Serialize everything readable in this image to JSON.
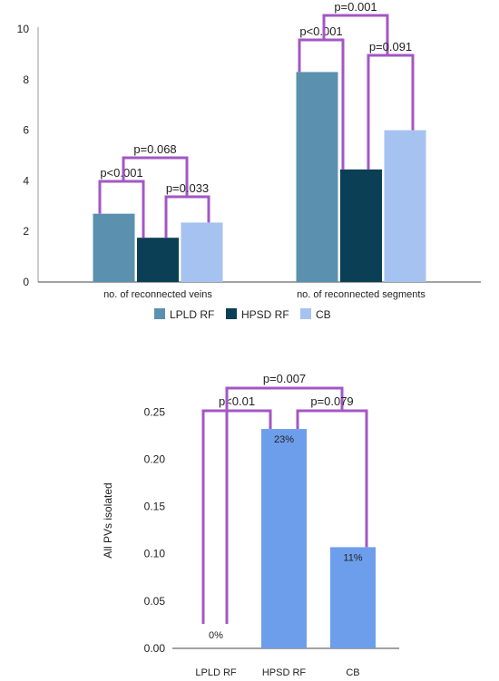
{
  "chart_data": [
    {
      "type": "bar",
      "categories": [
        "no. of reconnected veins",
        "no. of reconnected segments"
      ],
      "series": [
        {
          "name": "LPLD RF",
          "values": [
            2.7,
            8.3
          ],
          "color": "#5b91ae"
        },
        {
          "name": "HPSD RF",
          "values": [
            1.75,
            4.45
          ],
          "color": "#0b3f55"
        },
        {
          "name": "CB",
          "values": [
            2.35,
            6.0
          ],
          "color": "#a6c2f0"
        }
      ],
      "ylim": [
        0,
        10
      ],
      "yticks": [
        0,
        2,
        4,
        6,
        8,
        10
      ],
      "ytick_labels": [
        "0",
        "2",
        "4",
        "6",
        "8",
        "10"
      ],
      "grid": false,
      "legend_position": "bottom",
      "annotations": [
        {
          "text": "p<0.001",
          "category": 0,
          "from": 0,
          "to": 1,
          "level": 1
        },
        {
          "text": "p=0.068",
          "category": 0,
          "from": 0,
          "to": 2,
          "level": 2
        },
        {
          "text": "p=0.033",
          "category": 0,
          "from": 1,
          "to": 2,
          "level": 0
        },
        {
          "text": "p<0.001",
          "category": 1,
          "from": 0,
          "to": 1,
          "level": 1
        },
        {
          "text": "p=0.001",
          "category": 1,
          "from": 0,
          "to": 2,
          "level": 2
        },
        {
          "text": "p=0.091",
          "category": 1,
          "from": 1,
          "to": 2,
          "level": 0
        }
      ],
      "bracket_color": "#a357c4"
    },
    {
      "type": "bar",
      "categories": [
        "LPLD RF",
        "HPSD RF",
        "CB"
      ],
      "values": [
        0.0,
        0.232,
        0.107
      ],
      "data_labels": [
        "0%",
        "23%",
        "11%"
      ],
      "ylabel": "All PVs isolated",
      "ylim": [
        0,
        0.28
      ],
      "yticks": [
        0,
        0.05,
        0.1,
        0.15,
        0.2,
        0.25
      ],
      "ytick_labels": [
        "0.00",
        "0.05",
        "0.10",
        "0.15",
        "0.20",
        "0.25"
      ],
      "grid": false,
      "color": "#6d9eeb",
      "annotations": [
        {
          "text": "p<0.01",
          "from": 0,
          "to": 1,
          "level": 1
        },
        {
          "text": "p=0.007",
          "from": 0,
          "to": 2,
          "level": 2
        },
        {
          "text": "p=0.079",
          "from": 1,
          "to": 2,
          "level": 1
        }
      ],
      "bracket_color": "#a357c4"
    }
  ]
}
